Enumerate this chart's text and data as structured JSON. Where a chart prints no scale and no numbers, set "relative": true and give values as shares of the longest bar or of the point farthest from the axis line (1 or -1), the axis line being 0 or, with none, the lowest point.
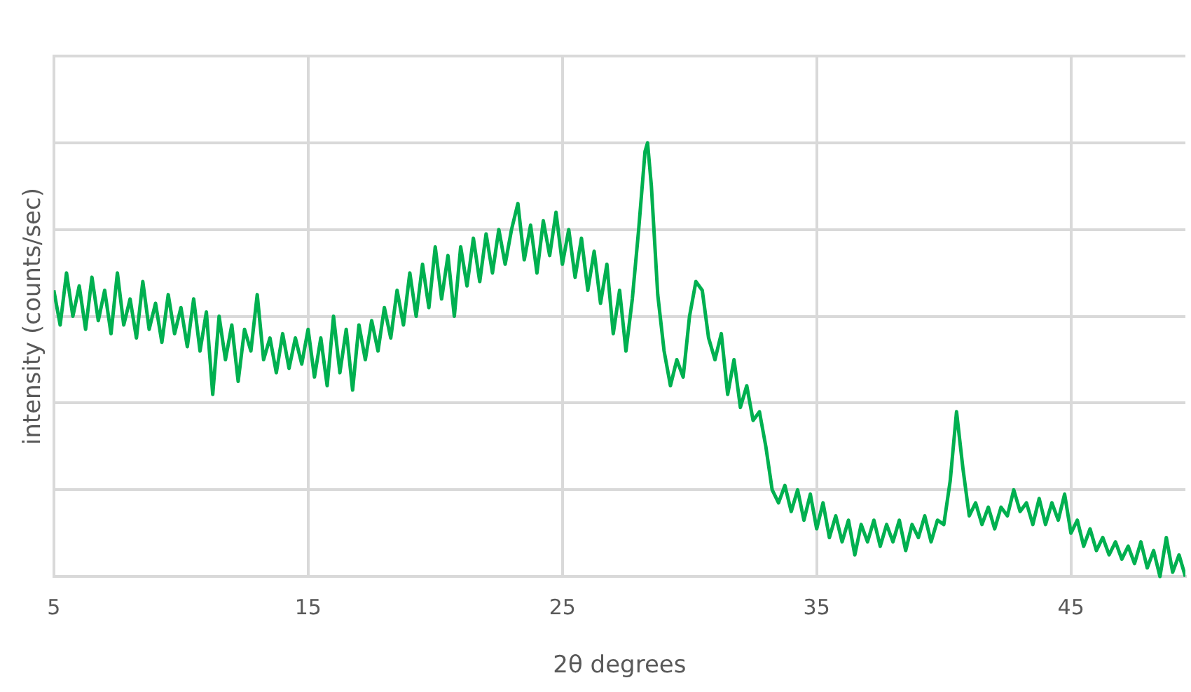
{
  "chart_data": {
    "type": "line",
    "xlabel": "2θ degrees",
    "ylabel": "intensity (counts/sec)",
    "relative": true,
    "grid": true,
    "marker": "none",
    "line_style": "solid",
    "xlim": [
      5,
      49.5
    ],
    "xticks": [
      5,
      15,
      25,
      35,
      45
    ],
    "x": [
      5,
      5.25,
      5.5,
      5.75,
      6,
      6.25,
      6.5,
      6.75,
      7,
      7.25,
      7.5,
      7.75,
      8,
      8.25,
      8.5,
      8.75,
      9,
      9.25,
      9.5,
      9.75,
      10,
      10.25,
      10.5,
      10.75,
      11,
      11.25,
      11.5,
      11.75,
      12,
      12.25,
      12.5,
      12.75,
      13,
      13.25,
      13.5,
      13.75,
      14,
      14.25,
      14.5,
      14.75,
      15,
      15.25,
      15.5,
      15.75,
      16,
      16.25,
      16.5,
      16.75,
      17,
      17.25,
      17.5,
      17.75,
      18,
      18.25,
      18.5,
      18.75,
      19,
      19.25,
      19.5,
      19.75,
      20,
      20.25,
      20.5,
      20.75,
      21,
      21.25,
      21.5,
      21.75,
      22,
      22.25,
      22.5,
      22.75,
      23,
      23.25,
      23.5,
      23.75,
      24,
      24.25,
      24.5,
      24.75,
      25,
      25.25,
      25.5,
      25.75,
      26,
      26.25,
      26.5,
      26.75,
      27,
      27.25,
      27.5,
      27.75,
      28,
      28.25,
      28.35,
      28.5,
      28.75,
      29,
      29.25,
      29.5,
      29.75,
      30,
      30.25,
      30.5,
      30.75,
      31,
      31.25,
      31.5,
      31.75,
      32,
      32.25,
      32.5,
      32.75,
      33,
      33.25,
      33.5,
      33.75,
      34,
      34.25,
      34.5,
      34.75,
      35,
      35.25,
      35.5,
      35.75,
      36,
      36.25,
      36.5,
      36.75,
      37,
      37.25,
      37.5,
      37.75,
      38,
      38.25,
      38.5,
      38.75,
      39,
      39.25,
      39.5,
      39.75,
      40,
      40.25,
      40.5,
      40.75,
      41,
      41.25,
      41.5,
      41.75,
      42,
      42.25,
      42.5,
      42.75,
      43,
      43.25,
      43.5,
      43.75,
      44,
      44.25,
      44.5,
      44.75,
      45,
      45.25,
      45.5,
      45.75,
      46,
      46.25,
      46.5,
      46.75,
      47,
      47.25,
      47.5,
      47.75,
      48,
      48.25,
      48.5,
      48.75,
      49,
      49.25,
      49.5
    ],
    "series": [
      {
        "color": "#00b050",
        "values": [
          0.66,
          0.58,
          0.7,
          0.6,
          0.67,
          0.57,
          0.69,
          0.59,
          0.66,
          0.56,
          0.7,
          0.58,
          0.64,
          0.55,
          0.68,
          0.57,
          0.63,
          0.54,
          0.65,
          0.56,
          0.62,
          0.53,
          0.64,
          0.52,
          0.61,
          0.42,
          0.6,
          0.5,
          0.58,
          0.45,
          0.57,
          0.52,
          0.65,
          0.5,
          0.55,
          0.47,
          0.56,
          0.48,
          0.55,
          0.49,
          0.57,
          0.46,
          0.55,
          0.44,
          0.6,
          0.47,
          0.57,
          0.43,
          0.58,
          0.5,
          0.59,
          0.52,
          0.62,
          0.55,
          0.66,
          0.58,
          0.7,
          0.6,
          0.72,
          0.62,
          0.76,
          0.64,
          0.74,
          0.6,
          0.76,
          0.67,
          0.78,
          0.68,
          0.79,
          0.7,
          0.8,
          0.72,
          0.8,
          0.86,
          0.73,
          0.81,
          0.7,
          0.82,
          0.74,
          0.84,
          0.72,
          0.8,
          0.69,
          0.78,
          0.66,
          0.75,
          0.63,
          0.72,
          0.56,
          0.66,
          0.52,
          0.64,
          0.8,
          0.98,
          1,
          0.9,
          0.65,
          0.52,
          0.44,
          0.5,
          0.46,
          0.6,
          0.68,
          0.66,
          0.55,
          0.5,
          0.56,
          0.42,
          0.5,
          0.39,
          0.44,
          0.36,
          0.38,
          0.3,
          0.2,
          0.17,
          0.21,
          0.15,
          0.2,
          0.13,
          0.19,
          0.11,
          0.17,
          0.09,
          0.14,
          0.08,
          0.13,
          0.05,
          0.12,
          0.08,
          0.13,
          0.07,
          0.12,
          0.08,
          0.13,
          0.06,
          0.12,
          0.09,
          0.14,
          0.08,
          0.13,
          0.12,
          0.22,
          0.38,
          0.25,
          0.14,
          0.17,
          0.12,
          0.16,
          0.11,
          0.16,
          0.14,
          0.2,
          0.15,
          0.17,
          0.12,
          0.18,
          0.12,
          0.17,
          0.13,
          0.19,
          0.1,
          0.13,
          0.07,
          0.11,
          0.06,
          0.09,
          0.05,
          0.08,
          0.04,
          0.07,
          0.03,
          0.08,
          0.02,
          0.06,
          0,
          0.09,
          0.01,
          0.05,
          0
        ]
      }
    ]
  }
}
